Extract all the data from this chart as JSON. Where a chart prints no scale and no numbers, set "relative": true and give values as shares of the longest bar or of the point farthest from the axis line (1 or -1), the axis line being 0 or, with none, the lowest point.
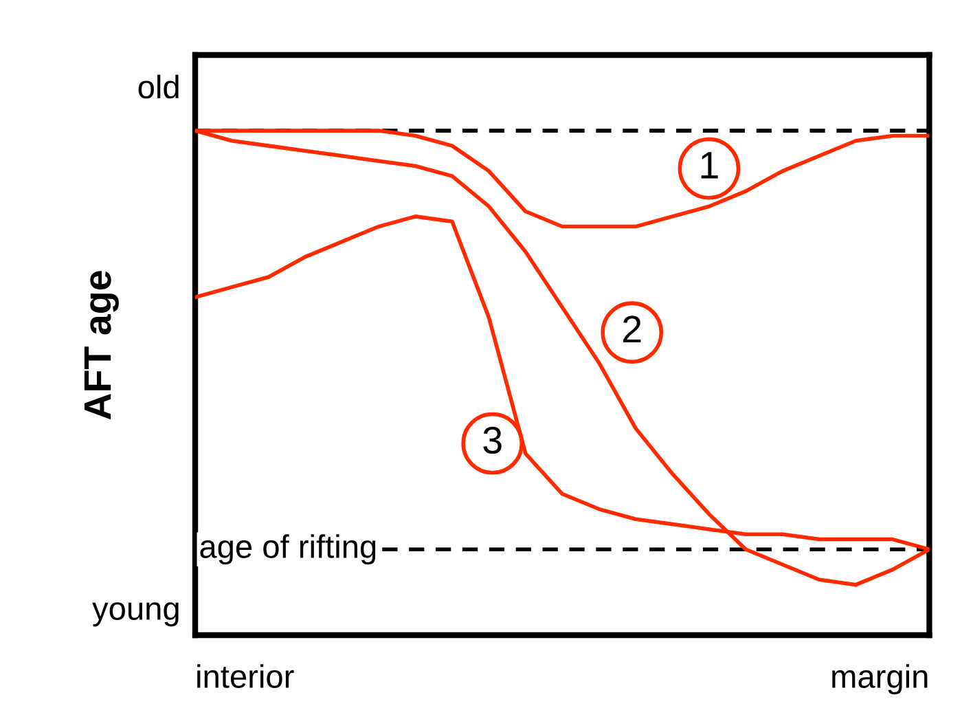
{
  "chart_data": {
    "type": "line",
    "relative": true,
    "ylabel": "AFT age",
    "categories": [
      null,
      null,
      null,
      null,
      null,
      null,
      null,
      null,
      null,
      null,
      null,
      null,
      null,
      null,
      null,
      null,
      null,
      null,
      null,
      null,
      null
    ],
    "series": [
      {
        "name": "1",
        "color": "#ff2a00",
        "values": [
          1,
          1,
          1,
          1,
          1,
          1,
          0.99,
          0.97,
          0.92,
          0.84,
          0.81,
          0.81,
          0.81,
          0.83,
          0.85,
          0.88,
          0.92,
          0.95,
          0.98,
          0.99,
          0.99
        ]
      },
      {
        "name": "2",
        "color": "#ff2a00",
        "values": [
          1,
          0.98,
          0.97,
          0.96,
          0.95,
          0.94,
          0.93,
          0.91,
          0.85,
          0.76,
          0.65,
          0.54,
          0.41,
          0.32,
          0.24,
          0.17,
          0.14,
          0.11,
          0.1,
          0.13,
          0.17
        ]
      },
      {
        "name": "3",
        "color": "#ff2a00",
        "values": [
          0.67,
          0.69,
          0.71,
          0.75,
          0.78,
          0.81,
          0.83,
          0.82,
          0.63,
          0.36,
          0.28,
          0.25,
          0.23,
          0.22,
          0.21,
          0.2,
          0.2,
          0.19,
          0.19,
          0.19,
          0.17
        ]
      }
    ],
    "ref_lines": [
      {
        "axis": "y",
        "value": 1,
        "label": null,
        "color": "#000000",
        "line_style": "dashed"
      },
      {
        "axis": "y",
        "value": 0.17,
        "label": "age of rifting",
        "color": "#000000",
        "line_style": "dashed"
      }
    ],
    "annotations": [
      "old",
      "young",
      "interior",
      "margin"
    ],
    "legend": false,
    "marker": "none",
    "line_style": "solid"
  }
}
